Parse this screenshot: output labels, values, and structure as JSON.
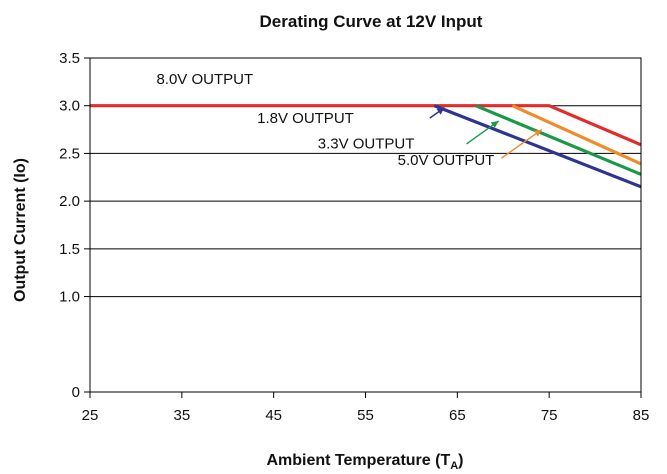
{
  "chart_data": {
    "type": "line",
    "title": "Derating Curve at 12V Input",
    "xlabel": "Ambient Temperature (T",
    "xlabel_sub": "A",
    "xlabel_end": ")",
    "ylabel": "Output Current (Io)",
    "xlim": [
      25,
      85
    ],
    "ylim": [
      0,
      3.5
    ],
    "x_ticks": [
      "25",
      "35",
      "45",
      "55",
      "65",
      "75",
      "85"
    ],
    "y_ticks": [
      "0",
      "1.0",
      "1.5",
      "2.0",
      "2.5",
      "3.0",
      "3.5"
    ],
    "grid": "horizontal",
    "series": [
      {
        "name": "8.0V OUTPUT",
        "color": "#e32b2b",
        "points": [
          [
            25,
            3.0
          ],
          [
            75,
            3.0
          ],
          [
            85,
            2.59
          ]
        ]
      },
      {
        "name": "5.0V OUTPUT",
        "color": "#f08a2c",
        "points": [
          [
            71,
            3.0
          ],
          [
            85,
            2.39
          ]
        ]
      },
      {
        "name": "3.3V OUTPUT",
        "color": "#1a9a48",
        "points": [
          [
            67,
            3.0
          ],
          [
            85,
            2.28
          ]
        ]
      },
      {
        "name": "1.8V OUTPUT",
        "color": "#2e3591",
        "points": [
          [
            62.5,
            3.0
          ],
          [
            85,
            2.15
          ]
        ]
      }
    ],
    "annotations": [
      {
        "text": "8.0V OUTPUT",
        "x": 37.5,
        "y": 3.23,
        "anchor": "middle"
      },
      {
        "text": "1.8V OUTPUT",
        "x": 43.2,
        "y": 2.82,
        "anchor": "start",
        "arrow_from": [
          62.0,
          2.87
        ],
        "arrow_to": [
          63.6,
          2.98
        ],
        "color": "#2e3591"
      },
      {
        "text": "3.3V OUTPUT",
        "x": 49.8,
        "y": 2.55,
        "anchor": "start",
        "arrow_from": [
          66.0,
          2.6
        ],
        "arrow_to": [
          69.5,
          2.84
        ],
        "color": "#1a9a48"
      },
      {
        "text": "5.0V OUTPUT",
        "x": 58.5,
        "y": 2.38,
        "anchor": "start",
        "arrow_from": [
          69.8,
          2.45
        ],
        "arrow_to": [
          74.2,
          2.75
        ],
        "color": "#f08a2c"
      }
    ]
  }
}
